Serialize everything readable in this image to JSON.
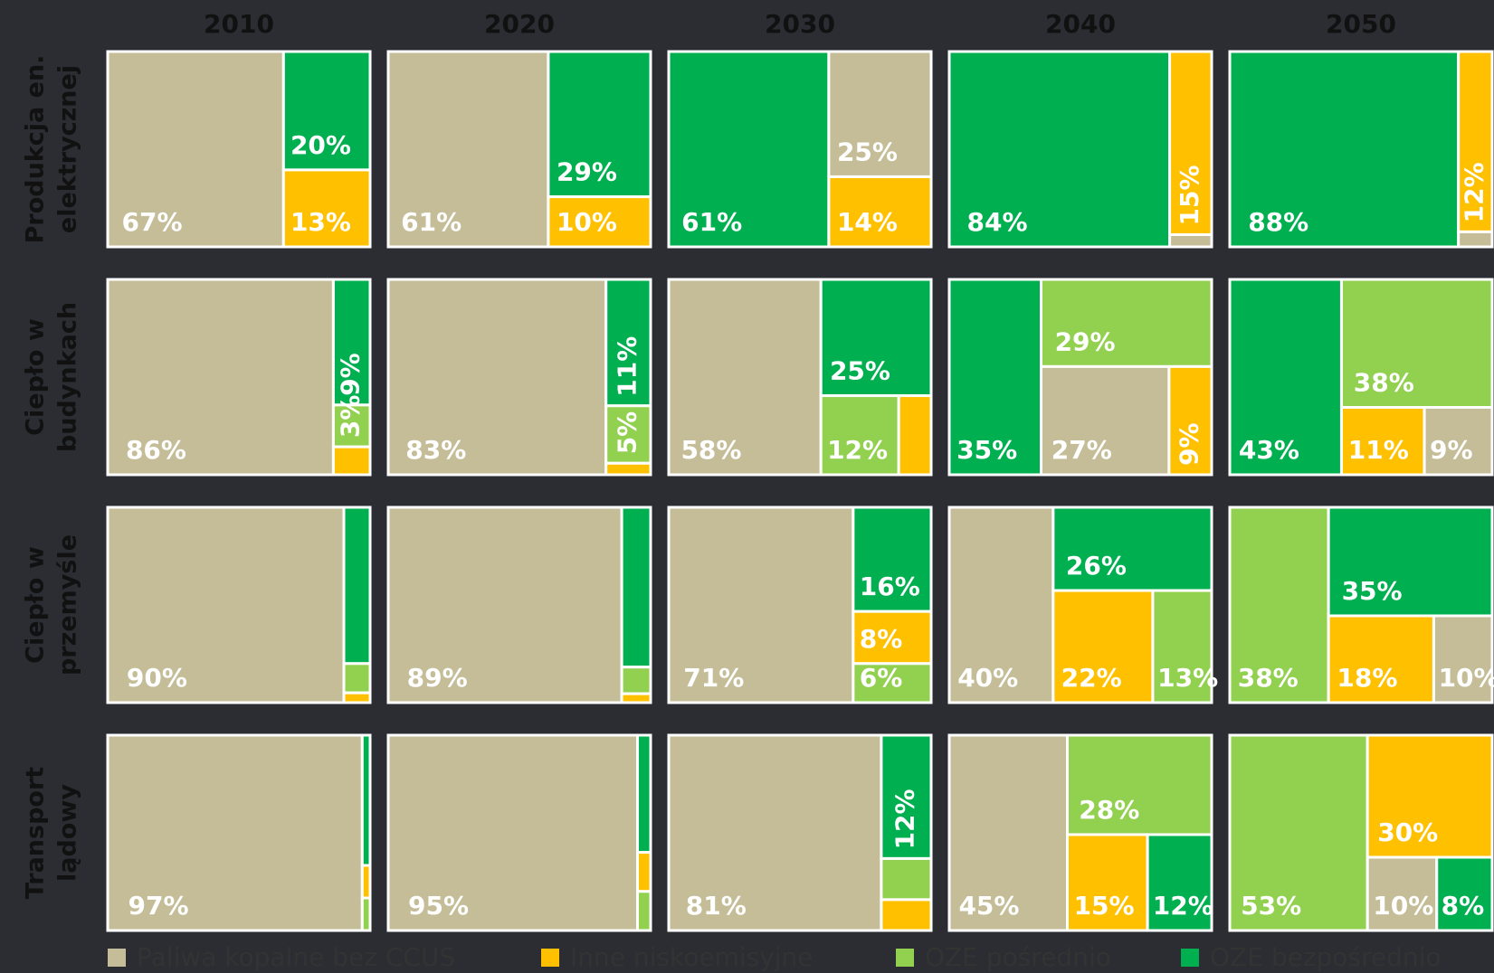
{
  "chart_data": {
    "type": "treemap",
    "categories": [
      "2010",
      "2020",
      "2030",
      "2040",
      "2050"
    ],
    "series": [
      {
        "name": "Paliwa kopalne bez CCUS",
        "color": "#c4bd97"
      },
      {
        "name": "Inne niskoemisyjne",
        "color": "#ffc000"
      },
      {
        "name": "OZE pośrednio",
        "color": "#92d050"
      },
      {
        "name": "OZE bezpośrednio",
        "color": "#00b050"
      }
    ],
    "rows": [
      {
        "labels": [
          "Produkcja en.",
          "elektrycznej"
        ],
        "values": [
          [
            67,
            13,
            0,
            20
          ],
          [
            61,
            10,
            0,
            29
          ],
          [
            25,
            14,
            0,
            61
          ],
          [
            1,
            15,
            0,
            84
          ],
          [
            1,
            12,
            0,
            88
          ]
        ],
        "value_labels": [
          [
            "67%",
            "13%",
            null,
            "20%"
          ],
          [
            "61%",
            "10%",
            null,
            "29%"
          ],
          [
            "25%",
            "14%",
            null,
            "61%"
          ],
          [
            null,
            "15%",
            null,
            "84%"
          ],
          [
            null,
            "12%",
            null,
            "88%"
          ]
        ]
      },
      {
        "labels": [
          "Ciepło w",
          "budynkach"
        ],
        "values": [
          [
            86,
            2,
            3,
            9
          ],
          [
            83,
            1,
            5,
            11
          ],
          [
            58,
            5,
            12,
            25
          ],
          [
            27,
            9,
            29,
            35
          ],
          [
            9,
            11,
            38,
            43
          ]
        ],
        "value_labels": [
          [
            "86%",
            null,
            "3%",
            "9%"
          ],
          [
            "83%",
            null,
            "5%",
            "11%"
          ],
          [
            "58%",
            null,
            "12%",
            "25%"
          ],
          [
            "27%",
            "9%",
            "29%",
            "35%"
          ],
          [
            "9%",
            "11%",
            "38%",
            "43%"
          ]
        ]
      },
      {
        "labels": [
          "Ciepło w",
          "przemyśle"
        ],
        "values": [
          [
            90,
            0.5,
            1.5,
            8
          ],
          [
            89,
            0.5,
            1.5,
            9
          ],
          [
            71,
            8,
            6,
            16
          ],
          [
            40,
            22,
            13,
            26
          ],
          [
            10,
            18,
            38,
            35
          ]
        ],
        "value_labels": [
          [
            "90%",
            null,
            null,
            null
          ],
          [
            "89%",
            null,
            null,
            null
          ],
          [
            "71%",
            "8%",
            "6%",
            "16%"
          ],
          [
            "40%",
            "22%",
            "13%",
            "26%"
          ],
          [
            "10%",
            "18%",
            "38%",
            "35%"
          ]
        ]
      },
      {
        "labels": [
          "Transport",
          "lądowy"
        ],
        "values": [
          [
            97,
            0.5,
            0.5,
            2
          ],
          [
            95,
            1,
            1,
            3
          ],
          [
            81,
            3,
            4,
            12
          ],
          [
            45,
            15,
            28,
            12
          ],
          [
            10,
            30,
            53,
            8
          ]
        ],
        "value_labels": [
          [
            "97%",
            null,
            null,
            null
          ],
          [
            "95%",
            null,
            null,
            null
          ],
          [
            "81%",
            null,
            null,
            "12%"
          ],
          [
            "45%",
            "15%",
            "28%",
            "12%"
          ],
          [
            "10%",
            "30%",
            "53%",
            "8%"
          ]
        ]
      }
    ]
  }
}
